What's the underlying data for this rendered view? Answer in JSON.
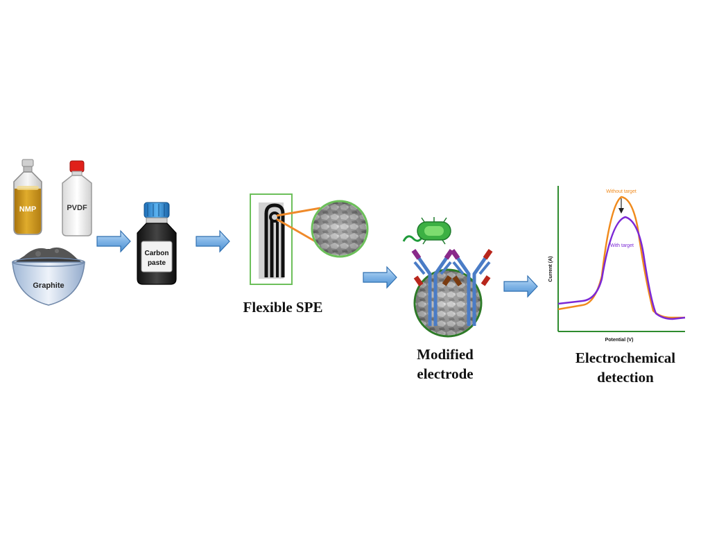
{
  "materials": {
    "nmp_label": "NMP",
    "pvdf_label": "PVDF",
    "graphite_label": "Graphite"
  },
  "carbon_paste": {
    "label_line1": "Carbon",
    "label_line2": "paste"
  },
  "captions": {
    "flexible_spe": "Flexible SPE",
    "modified_line1": "Modified",
    "modified_line2": "electrode",
    "detection_line1": "Electrochemical",
    "detection_line2": "detection"
  },
  "graph": {
    "x_axis_label": "Potential (V)",
    "y_axis_label": "Current (A)",
    "without_target_label": "Without target",
    "with_target_label": "With target"
  },
  "colors": {
    "arrow_fill": "#7fb3e6",
    "arrow_stroke": "#2f6fb0",
    "green_frame": "#6cbf5a",
    "orange_curve": "#f08a1c",
    "purple_curve": "#7b28d6",
    "nmp_liquid": "#c8921c",
    "cap_red": "#e0201a",
    "cap_blue": "#2f8fd8",
    "antibody_blue": "#4a7cc6",
    "bacteria_green": "#3cb043"
  }
}
